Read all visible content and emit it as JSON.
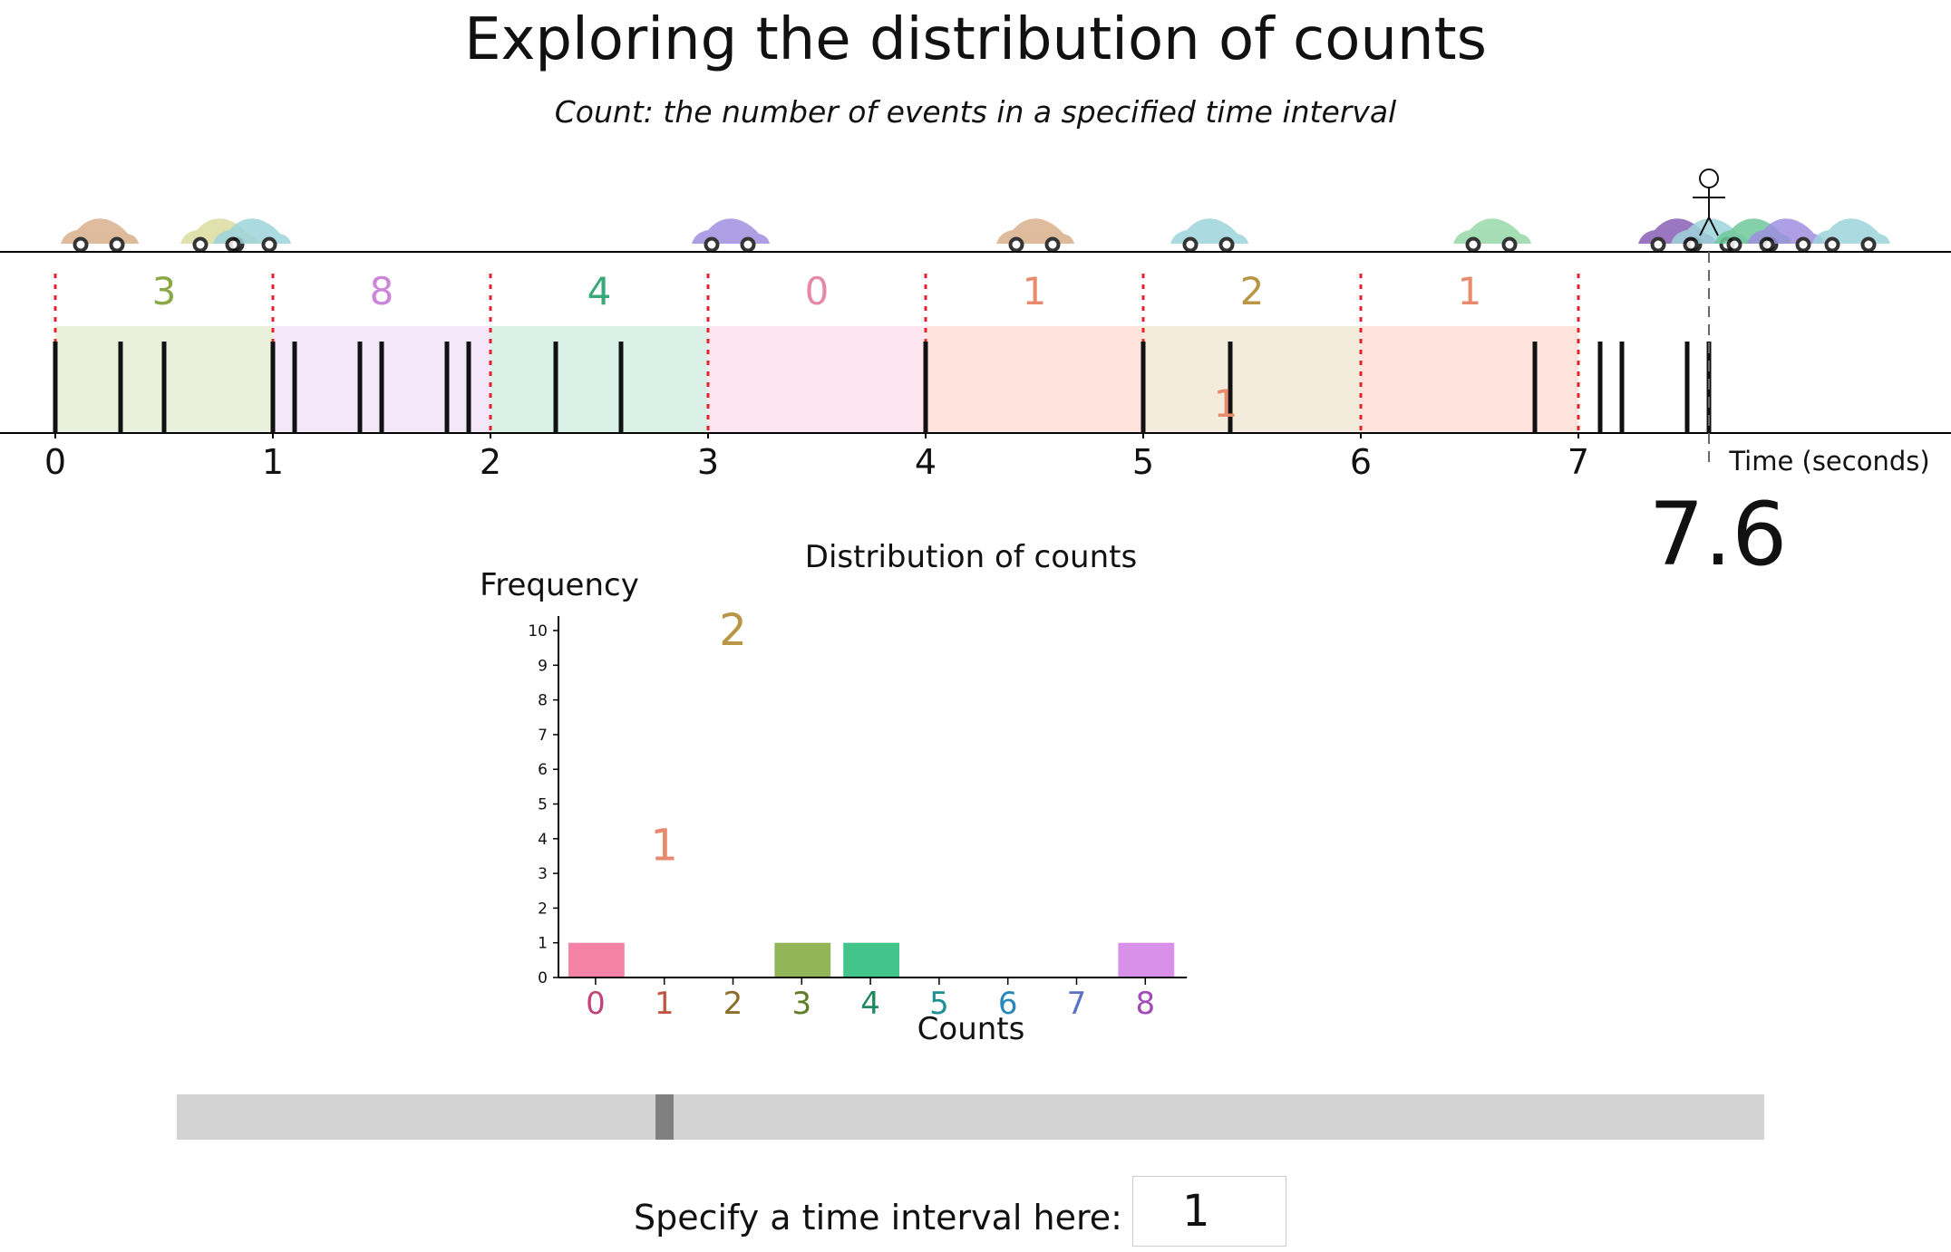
{
  "header": {
    "title": "Exploring the distribution of counts",
    "subtitle": "Count: the number of events in a specified time interval"
  },
  "timeline": {
    "axis_label": "Time (seconds)",
    "tick_labels": [
      "0",
      "1",
      "2",
      "3",
      "4",
      "5",
      "6",
      "7"
    ],
    "current_time": "7.6",
    "current_time_value": 7.6,
    "interval_counts": [
      {
        "count": "3",
        "color": "#8aa845",
        "fill": "#e9f1dc"
      },
      {
        "count": "8",
        "color": "#cc85d8",
        "fill": "#f3e7f8"
      },
      {
        "count": "4",
        "color": "#3aa87a",
        "fill": "#d9f1e7"
      },
      {
        "count": "0",
        "color": "#e58aa6",
        "fill": "#fde6ef"
      },
      {
        "count": "1",
        "color": "#e88a6e",
        "fill": "#fde3dc"
      },
      {
        "count": "2",
        "color": "#b99546",
        "fill": "#f3ecdc"
      },
      {
        "count": "1",
        "color": "#e88a6e",
        "fill": "#fde3dc"
      }
    ],
    "event_times": [
      0.0,
      0.3,
      0.5,
      1.0,
      1.1,
      1.4,
      1.5,
      1.8,
      1.9,
      2.3,
      2.6,
      4.0,
      5.0,
      5.4,
      6.8,
      7.1,
      7.2,
      7.5,
      7.6
    ],
    "floating_label": {
      "text": "1",
      "color": "#e88a6e"
    },
    "cars": [
      {
        "time": 0.2,
        "color": "#d9b08c"
      },
      {
        "time": 0.75,
        "color": "#dcdca0"
      },
      {
        "time": 0.9,
        "color": "#9ed4dc"
      },
      {
        "time": 3.1,
        "color": "#a08fe0"
      },
      {
        "time": 4.5,
        "color": "#d9b08c"
      },
      {
        "time": 5.3,
        "color": "#9ed4dc"
      },
      {
        "time": 6.6,
        "color": "#96d8a8"
      },
      {
        "time": 7.45,
        "color": "#8a5fb6"
      },
      {
        "time": 7.6,
        "color": "#9ed4dc"
      },
      {
        "time": 7.8,
        "color": "#6fc99a"
      },
      {
        "time": 7.95,
        "color": "#a08fe0"
      },
      {
        "time": 8.25,
        "color": "#9ed4dc"
      }
    ]
  },
  "histogram": {
    "title": "Distribution of counts",
    "ylabel": "Frequency",
    "xlabel": "Counts",
    "y_ticks": [
      "0",
      "1",
      "2",
      "3",
      "4",
      "5",
      "6",
      "7",
      "8",
      "9",
      "10"
    ],
    "categories": [
      {
        "label": "0",
        "label_color": "#c2447a",
        "bar_color": "#f583a8"
      },
      {
        "label": "1",
        "label_color": "#c0543e",
        "bar_color": "#ef8b6b"
      },
      {
        "label": "2",
        "label_color": "#8d6d2a",
        "bar_color": "#c9a35a"
      },
      {
        "label": "3",
        "label_color": "#5f7d26",
        "bar_color": "#93b55a"
      },
      {
        "label": "4",
        "label_color": "#1f8a5e",
        "bar_color": "#43c48a"
      },
      {
        "label": "5",
        "label_color": "#1f8f93",
        "bar_color": "#43c4c4"
      },
      {
        "label": "6",
        "label_color": "#2687b8",
        "bar_color": "#5ab0e0"
      },
      {
        "label": "7",
        "label_color": "#5a72c6",
        "bar_color": "#8a9ee8"
      },
      {
        "label": "8",
        "label_color": "#a24ab8",
        "bar_color": "#d890e8"
      }
    ],
    "frequencies": [
      1,
      0,
      0,
      1,
      1,
      0,
      0,
      0,
      1
    ],
    "floating_counts": [
      {
        "text": "1",
        "x": 1,
        "y": 3.8,
        "color": "#e88a6e"
      },
      {
        "text": "2",
        "x": 2,
        "y": 10,
        "color": "#b99546"
      }
    ]
  },
  "slider": {
    "value": 0.3075
  },
  "interval": {
    "label": "Specify a time interval here:",
    "value": "1"
  }
}
